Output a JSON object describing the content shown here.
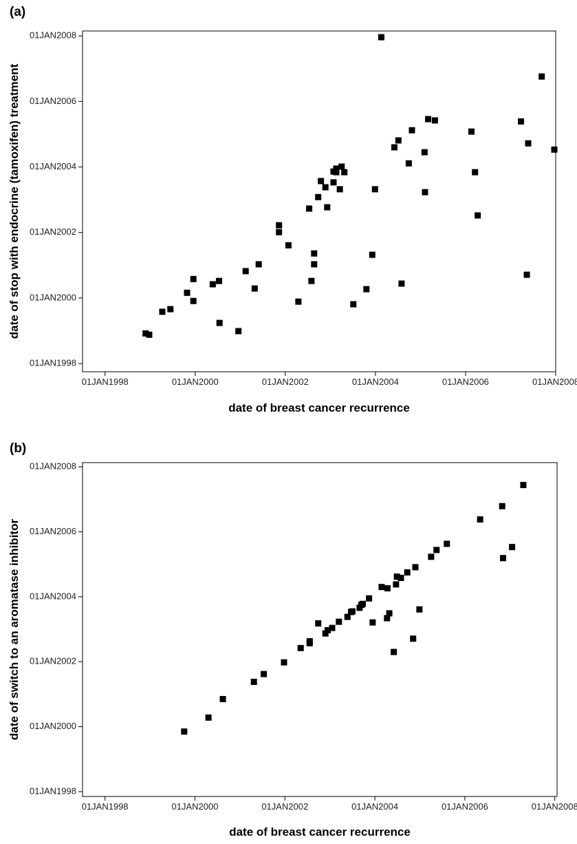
{
  "chart_data": [
    {
      "type": "scatter",
      "title": "(a)",
      "x_label": "date of breast cancer recurrence",
      "y_label": "date of stop with endocrine (tamoxifen) treatment",
      "color": "#000000",
      "xlim": [
        1997.5,
        2008.0
      ],
      "ylim": [
        1997.75,
        2008.15
      ],
      "xticks": [
        {
          "value": 1998,
          "label": "01JAN1998"
        },
        {
          "value": 2000,
          "label": "01JAN2000"
        },
        {
          "value": 2002,
          "label": "01JAN2002"
        },
        {
          "value": 2004,
          "label": "01JAN2004"
        },
        {
          "value": 2006,
          "label": "01JAN2006"
        },
        {
          "value": 2008,
          "label": "01JAN2008"
        }
      ],
      "yticks": [
        {
          "value": 1998,
          "label": "01JAN1998"
        },
        {
          "value": 2000,
          "label": "01JAN2000"
        },
        {
          "value": 2002,
          "label": "01JAN2002"
        },
        {
          "value": 2004,
          "label": "01JAN2004"
        },
        {
          "value": 2006,
          "label": "01JAN2006"
        },
        {
          "value": 2008,
          "label": "01JAN2008"
        }
      ],
      "x": [
        1998.9,
        1998.98,
        1999.27,
        1999.45,
        1999.82,
        1999.96,
        1999.96,
        2000.39,
        2000.53,
        2000.54,
        2000.96,
        2001.12,
        2001.32,
        2001.41,
        2001.86,
        2001.86,
        2002.07,
        2002.29,
        2002.53,
        2002.58,
        2002.64,
        2002.64,
        2002.79,
        2002.73,
        2002.89,
        2002.93,
        2003.07,
        2003.07,
        2003.13,
        2003.13,
        2003.21,
        2003.25,
        2003.31,
        2003.51,
        2003.8,
        2003.93,
        2003.99,
        2004.13,
        2004.42,
        2004.51,
        2004.58,
        2004.74,
        2004.81,
        2005.09,
        2005.1,
        2005.17,
        2005.32,
        2006.13,
        2006.21,
        2006.27,
        2007.23,
        2007.36,
        2007.39,
        2007.69,
        2007.97
      ],
      "values": [
        1998.92,
        1998.88,
        1999.58,
        1999.66,
        2000.16,
        2000.58,
        1999.91,
        2000.42,
        2000.52,
        1999.24,
        1998.99,
        2000.82,
        2000.29,
        2001.03,
        2002.22,
        2002.01,
        2001.61,
        1999.89,
        2002.73,
        2000.52,
        2001.36,
        2001.03,
        2003.57,
        2003.08,
        2003.38,
        2002.77,
        2003.53,
        2003.86,
        2003.95,
        2003.84,
        2003.32,
        2004.01,
        2003.84,
        1999.81,
        2000.27,
        2001.32,
        2003.32,
        2007.96,
        2004.6,
        2004.81,
        2000.44,
        2004.11,
        2005.12,
        2004.45,
        2003.23,
        2005.46,
        2005.42,
        2005.08,
        2003.84,
        2002.52,
        2005.39,
        2000.71,
        2004.72,
        2006.76,
        2004.53
      ]
    },
    {
      "type": "scatter",
      "title": "(b)",
      "x_label": "date of breast cancer recurrence",
      "y_label": "date of switch to an aromatase inhibitor",
      "color": "#000000",
      "xlim": [
        1997.5,
        2008.05
      ],
      "ylim": [
        1997.85,
        2008.13
      ],
      "xticks": [
        {
          "value": 1998,
          "label": "01JAN1998"
        },
        {
          "value": 2000,
          "label": "01JAN2000"
        },
        {
          "value": 2002,
          "label": "01JAN2002"
        },
        {
          "value": 2004,
          "label": "01JAN2004"
        },
        {
          "value": 2006,
          "label": "01JAN2006"
        },
        {
          "value": 2008,
          "label": "01JAN2008"
        }
      ],
      "yticks": [
        {
          "value": 1998,
          "label": "01JAN1998"
        },
        {
          "value": 2000,
          "label": "01JAN2000"
        },
        {
          "value": 2002,
          "label": "01JAN2002"
        },
        {
          "value": 2004,
          "label": "01JAN2004"
        },
        {
          "value": 2006,
          "label": "01JAN2006"
        },
        {
          "value": 2008,
          "label": "01JAN2008"
        }
      ],
      "x": [
        1999.76,
        2000.3,
        2000.62,
        2001.31,
        2001.53,
        2001.98,
        2002.35,
        2002.55,
        2002.55,
        2002.74,
        2002.9,
        2002.95,
        2003.05,
        2003.2,
        2003.39,
        2003.47,
        2003.5,
        2003.66,
        2003.7,
        2003.73,
        2003.87,
        2003.95,
        2004.15,
        2004.27,
        2004.28,
        2004.32,
        2004.42,
        2004.47,
        2004.49,
        2004.58,
        2004.72,
        2004.85,
        2004.9,
        2004.99,
        2005.25,
        2005.37,
        2005.6,
        2006.34,
        2006.83,
        2006.85,
        2007.05,
        2007.3
      ],
      "values": [
        1999.85,
        2000.28,
        2000.85,
        2001.38,
        2001.62,
        2001.98,
        2002.42,
        2002.57,
        2002.63,
        2003.18,
        2002.87,
        2002.97,
        2003.04,
        2003.23,
        2003.38,
        2003.53,
        2003.55,
        2003.66,
        2003.75,
        2003.78,
        2003.95,
        2003.21,
        2004.3,
        2003.34,
        2004.26,
        2003.49,
        2002.3,
        2004.38,
        2004.62,
        2004.58,
        2004.75,
        2002.71,
        2004.91,
        2003.61,
        2005.23,
        2005.44,
        2005.63,
        2006.38,
        2006.79,
        2005.19,
        2005.53,
        2007.44
      ]
    }
  ]
}
